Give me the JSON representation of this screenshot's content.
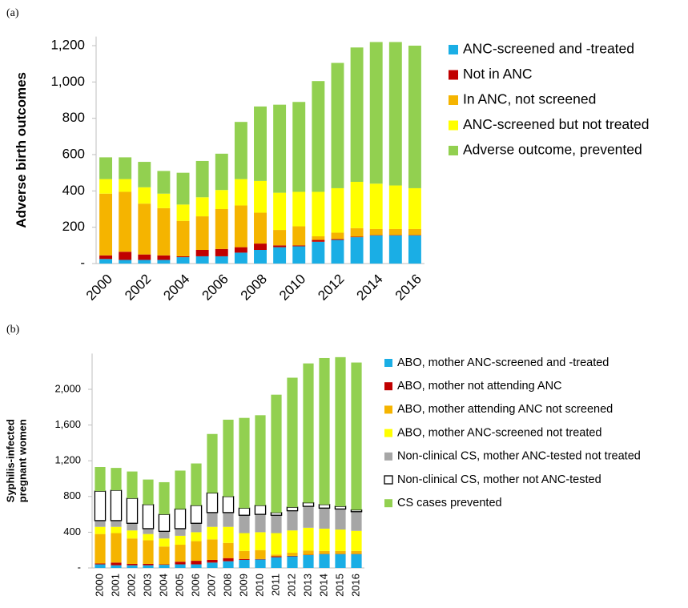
{
  "chart_data": [
    {
      "type": "bar",
      "stacked": true,
      "panel": "(a)",
      "ylabel": [
        "Adverse birth outcomes"
      ],
      "categories": [
        "2000",
        null,
        "2002",
        null,
        "2004",
        null,
        "2006",
        null,
        "2008",
        null,
        "2010",
        null,
        "2012",
        null,
        "2014",
        null,
        "2016"
      ],
      "ylim": [
        0,
        1250
      ],
      "yticks": [
        {
          "value": 0,
          "label": "-"
        },
        200,
        400,
        600,
        800,
        {
          "value": 1000,
          "label": "1,000"
        },
        {
          "value": 1200,
          "label": "1,200"
        }
      ],
      "legend": "right",
      "series": [
        {
          "name": "ANC-screened and -treated",
          "color": "#1aaee5",
          "values": [
            25,
            20,
            20,
            20,
            35,
            40,
            40,
            60,
            75,
            90,
            95,
            120,
            130,
            145,
            155,
            155,
            155
          ]
        },
        {
          "name": "Not in ANC",
          "color": "#c00000",
          "values": [
            20,
            45,
            30,
            25,
            5,
            35,
            40,
            30,
            35,
            10,
            5,
            10,
            5,
            3,
            2,
            2,
            2
          ]
        },
        {
          "name": "In ANC, not screened",
          "color": "#f5b400",
          "values": [
            340,
            330,
            280,
            260,
            195,
            185,
            220,
            230,
            170,
            85,
            105,
            20,
            35,
            47,
            33,
            33,
            33
          ]
        },
        {
          "name": "ANC-screened but not treated",
          "color": "#ffff00",
          "values": [
            80,
            70,
            90,
            80,
            90,
            105,
            105,
            145,
            175,
            205,
            190,
            245,
            245,
            255,
            250,
            240,
            225
          ]
        },
        {
          "name": "Adverse outcome, prevented",
          "color": "#92d050",
          "values": [
            120,
            120,
            140,
            125,
            175,
            200,
            200,
            315,
            410,
            485,
            495,
            610,
            690,
            740,
            780,
            790,
            785
          ]
        }
      ]
    },
    {
      "type": "bar",
      "stacked": true,
      "panel": "(b)",
      "ylabel": [
        "Syphilis-infected",
        "pregnant women"
      ],
      "categories": [
        "2000",
        "2001",
        "2002",
        "2003",
        "2004",
        "2005",
        "2006",
        "2007",
        "2008",
        "2009",
        "2010",
        "2011",
        "2012",
        "2013",
        "2014",
        "2015",
        "2016"
      ],
      "ylim": [
        0,
        2400
      ],
      "yticks": [
        {
          "value": 0,
          "label": "-"
        },
        400,
        800,
        {
          "value": 1200,
          "label": "1,200"
        },
        {
          "value": 1600,
          "label": "1,600"
        },
        {
          "value": 2000,
          "label": "2,000"
        }
      ],
      "legend": "right",
      "series": [
        {
          "name": "ABO, mother ANC-screened and -treated",
          "color": "#1aaee5",
          "values": [
            40,
            30,
            30,
            30,
            35,
            40,
            40,
            60,
            75,
            90,
            95,
            120,
            130,
            145,
            155,
            155,
            155
          ]
        },
        {
          "name": "ABO, mother not attending ANC",
          "color": "#c00000",
          "values": [
            10,
            30,
            15,
            15,
            5,
            30,
            40,
            30,
            35,
            10,
            5,
            10,
            5,
            3,
            2,
            2,
            2
          ]
        },
        {
          "name": "ABO, mother attending ANC not screened",
          "color": "#f5b400",
          "values": [
            330,
            330,
            285,
            265,
            200,
            190,
            220,
            230,
            170,
            90,
            100,
            20,
            35,
            47,
            33,
            33,
            33
          ]
        },
        {
          "name": "ABO, mother ANC-screened not treated",
          "color": "#ffff00",
          "values": [
            80,
            70,
            90,
            70,
            90,
            100,
            100,
            140,
            180,
            200,
            200,
            240,
            250,
            255,
            250,
            240,
            225
          ]
        },
        {
          "name": "Non-clinical CS, mother ANC-tested not treated",
          "color": "#a6a6a6",
          "values": [
            70,
            70,
            80,
            60,
            80,
            80,
            100,
            160,
            160,
            200,
            200,
            200,
            220,
            240,
            230,
            230,
            215
          ]
        },
        {
          "name": "Non-clinical CS, mother not ANC-tested",
          "color": "#ffffff",
          "values": [
            330,
            340,
            280,
            270,
            190,
            220,
            200,
            220,
            180,
            80,
            100,
            30,
            40,
            40,
            40,
            30,
            20
          ]
        },
        {
          "name": "CS cases prevented",
          "color": "#92d050",
          "values": [
            270,
            250,
            300,
            280,
            360,
            430,
            470,
            660,
            860,
            1010,
            1010,
            1320,
            1450,
            1560,
            1640,
            1670,
            1650
          ]
        }
      ]
    }
  ]
}
